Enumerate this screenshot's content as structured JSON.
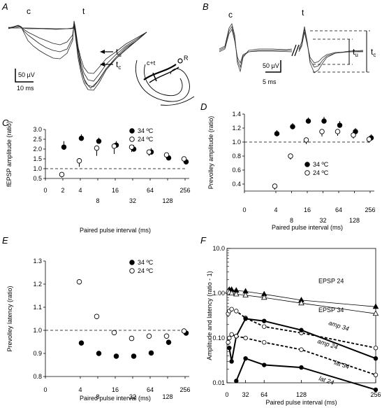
{
  "panels": {
    "A": {
      "letter": "A",
      "c": "c",
      "t": "t",
      "tu": "t",
      "tu_sub": "u",
      "tc": "t",
      "tc_sub": "c",
      "scale_v": "50 µV",
      "scale_t": "10 ms",
      "slice_ct": "c+t",
      "slice_R": "R"
    },
    "B": {
      "letter": "B",
      "c": "c",
      "t": "t",
      "tu": "t",
      "tu_sub": "u",
      "tc": "t",
      "tc_sub": "c",
      "scale_v": "50 µV",
      "scale_t": "5 ms"
    },
    "C": {
      "letter": "C"
    },
    "D": {
      "letter": "D"
    },
    "E": {
      "letter": "E"
    },
    "F": {
      "letter": "F"
    }
  },
  "chart_data": [
    {
      "id": "C",
      "type": "scatter",
      "ylabel": "fEPSP amplitude (ratio)",
      "xlabel": "Paired pulse interval (ms)",
      "xscale": "log2",
      "xlim": [
        1,
        256
      ],
      "ylim": [
        0.5,
        3.0
      ],
      "x_ticks_upper": [
        "0",
        "2",
        "4",
        "16",
        "64",
        "256"
      ],
      "x_ticks_lower": [
        "8",
        "32",
        "128"
      ],
      "y_ticks": [
        "0.5",
        "1.0",
        "1.5",
        "2.0",
        "2.5",
        "3.0"
      ],
      "reference_line": 1.0,
      "legend_position": "top-right",
      "series": [
        {
          "name": "34 ºC",
          "marker": "filled",
          "x": [
            2,
            4,
            8,
            16,
            32,
            64,
            128,
            256
          ],
          "y": [
            2.1,
            2.55,
            2.4,
            2.2,
            2.0,
            1.85,
            1.55,
            1.35
          ],
          "err": [
            0.3,
            0.2,
            0.18,
            0.2,
            0.2,
            0.2,
            0.18,
            0.1
          ]
        },
        {
          "name": "24 ºC",
          "marker": "open",
          "x": [
            2,
            4,
            8,
            16,
            32,
            64,
            128,
            256
          ],
          "y": [
            0.7,
            1.4,
            2.05,
            2.15,
            2.1,
            1.85,
            1.7,
            1.5
          ],
          "err": [
            0.15,
            0.3,
            0.4,
            0.4,
            0.25,
            0.2,
            0.2,
            0.1
          ]
        }
      ]
    },
    {
      "id": "D",
      "type": "scatter",
      "ylabel": "Prevolley amplitude (ratio)",
      "xlabel": "Paired pulse interval (ms)",
      "xscale": "log2",
      "xlim": [
        1,
        256
      ],
      "ylim": [
        0.3,
        1.4
      ],
      "x_ticks_upper": [
        "0",
        "4",
        "16",
        "64",
        "256"
      ],
      "x_ticks_lower": [
        "8",
        "32",
        "128"
      ],
      "y_ticks": [
        "0.4",
        "0.6",
        "0.8",
        "1.0",
        "1.2",
        "1.4"
      ],
      "reference_line": 1.0,
      "legend_position": "bottom-right",
      "series": [
        {
          "name": "34 ºC",
          "marker": "filled",
          "x": [
            4,
            8,
            16,
            32,
            64,
            128,
            256
          ],
          "y": [
            1.12,
            1.22,
            1.3,
            1.3,
            1.24,
            1.15,
            1.06
          ],
          "err": [
            0.05,
            0.05,
            0.05,
            0.06,
            0.06,
            0.05,
            0.05
          ]
        },
        {
          "name": "24 ºC",
          "marker": "open",
          "x": [
            4,
            8,
            16,
            32,
            64,
            128,
            256
          ],
          "y": [
            0.37,
            0.8,
            1.03,
            1.15,
            1.15,
            1.1,
            1.04
          ],
          "err": [
            0.05,
            0.05,
            0.06,
            0.07,
            0.06,
            0.05,
            0.05
          ]
        }
      ]
    },
    {
      "id": "E",
      "type": "scatter",
      "ylabel": "Prevolley latency (ratio)",
      "xlabel": "Paired pulse interval (ms)",
      "xscale": "log2",
      "xlim": [
        1,
        256
      ],
      "ylim": [
        0.8,
        1.3
      ],
      "x_ticks_upper": [
        "0",
        "4",
        "16",
        "64",
        "256"
      ],
      "x_ticks_lower": [
        "8",
        "32",
        "128"
      ],
      "y_ticks": [
        "0.8",
        "0.9",
        "1.0",
        "1.1",
        "1.2",
        "1.3"
      ],
      "reference_line": 1.0,
      "legend_position": "top-right",
      "series": [
        {
          "name": "34 ºC",
          "marker": "filled",
          "x": [
            4,
            8,
            16,
            32,
            64,
            128,
            256
          ],
          "y": [
            0.945,
            0.9,
            0.888,
            0.888,
            0.902,
            0.948,
            0.988
          ]
        },
        {
          "name": "24 ºC",
          "marker": "open",
          "x": [
            4,
            8,
            16,
            32,
            64,
            128,
            256
          ],
          "y": [
            1.21,
            1.06,
            0.99,
            0.965,
            0.975,
            0.975,
            0.997
          ]
        }
      ]
    },
    {
      "id": "F",
      "type": "line",
      "ylabel": "Amplitude and latency (ratio - 1)",
      "xlabel": "Paired pulse interval (ms)",
      "yscale": "log10",
      "xlim": [
        0,
        256
      ],
      "ylim": [
        0.01,
        10.0
      ],
      "x_ticks": [
        "0",
        "32",
        "64",
        "128",
        "256"
      ],
      "y_ticks": [
        "0.01",
        "0.10",
        "1.00",
        "10.0"
      ],
      "series": [
        {
          "name": "EPSP 24",
          "marker": "filled-triangle",
          "style": "solid-thin",
          "x": [
            2,
            4,
            8,
            16,
            32,
            64,
            128,
            256
          ],
          "y": [
            1.1,
            1.2,
            1.2,
            1.15,
            1.1,
            0.95,
            0.7,
            0.5
          ]
        },
        {
          "name": "EPSP 34",
          "marker": "open-triangle",
          "style": "solid-thin",
          "x": [
            2,
            4,
            8,
            16,
            32,
            64,
            128,
            256
          ],
          "y": [
            1.1,
            1.05,
            1.0,
            0.95,
            0.9,
            0.8,
            0.6,
            0.35
          ]
        },
        {
          "name": "amp 34",
          "marker": "open-circle",
          "style": "dashed",
          "x": [
            2,
            4,
            8,
            16,
            32,
            64,
            128,
            256
          ],
          "y": [
            0.35,
            0.4,
            0.44,
            0.4,
            0.28,
            0.18,
            0.13,
            0.06
          ]
        },
        {
          "name": "amp 24",
          "marker": "filled-circle",
          "style": "solid-thick",
          "x": [
            4,
            8,
            16,
            32,
            64,
            128,
            256
          ],
          "y": [
            0.06,
            0.03,
            0.11,
            0.27,
            0.24,
            0.15,
            0.035
          ]
        },
        {
          "name": "lat 34",
          "marker": "open-circle",
          "style": "dashed",
          "x": [
            2,
            4,
            8,
            16,
            32,
            64,
            128,
            256
          ],
          "y": [
            0.08,
            0.1,
            0.12,
            0.11,
            0.1,
            0.08,
            0.055,
            0.015
          ]
        },
        {
          "name": "lat 24",
          "marker": "filled-circle",
          "style": "solid-thick",
          "x": [
            16,
            32,
            64,
            128,
            256
          ],
          "y": [
            0.011,
            0.035,
            0.025,
            0.022,
            0.007
          ]
        }
      ]
    }
  ]
}
